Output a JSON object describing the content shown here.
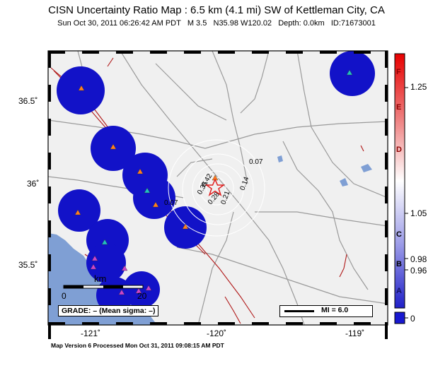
{
  "title": "CISN Uncertainty Ratio Map : 6.5 km (4.1 mi) SW of Kettleman City, CA",
  "subtitle": {
    "date": "Sun Oct 30, 2011 06:26:42 AM PDT",
    "magnitude": "M 3.5",
    "location": "N35.98 W120.02",
    "depth": "Depth: 0.0km",
    "event_id": "ID:71673001"
  },
  "footer": "Map Version 6 Processed Mon Oct 31, 2011 09:08:15 AM PDT",
  "axes": {
    "lon_ticks": [
      "-121˚",
      "-120˚",
      "-119˚"
    ],
    "lat_ticks": [
      "36.5˚",
      "36˚",
      "35.5˚"
    ]
  },
  "colorbar": {
    "letters": [
      "F",
      "E",
      "D",
      "C",
      "B",
      "A"
    ],
    "values": [
      "1.25",
      "1.05",
      "0.98",
      "0.96",
      "0"
    ]
  },
  "contour_labels": [
    "0.07",
    "0.07",
    "0.14",
    "0.21",
    "0.28",
    "0.35",
    "0.42"
  ],
  "scale_bar": {
    "unit": "km",
    "left": "0",
    "right": "20"
  },
  "grade_box": "GRADE: – (Mean sigma: –)",
  "mi_legend": "MI = 6.0",
  "colors": {
    "land": "#f0f0f0",
    "water": "#7f9fd4",
    "road": "#9a9a9a",
    "fault": "#b01818",
    "station_blob": "#1212c8",
    "station_triangle": "#ff7f1e",
    "epicenter": "#e02020"
  }
}
